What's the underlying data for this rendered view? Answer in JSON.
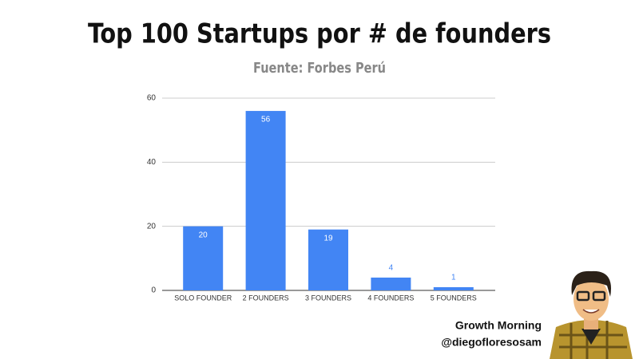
{
  "chart_data": {
    "type": "bar",
    "title": "Top 100 Startups por # de founders",
    "subtitle": "Fuente: Forbes Perú",
    "categories": [
      "SOLO FOUNDER",
      "2 FOUNDERS",
      "3 FOUNDERS",
      "4 FOUNDERS",
      "5 FOUNDERS"
    ],
    "values": [
      20,
      56,
      19,
      4,
      1
    ],
    "color": "#4285f4",
    "ylim": [
      0,
      60
    ],
    "yticks": [
      0,
      20,
      40,
      60
    ],
    "grid": true,
    "annotations": [
      "Growth Morning",
      "@diegofloresosam"
    ]
  }
}
